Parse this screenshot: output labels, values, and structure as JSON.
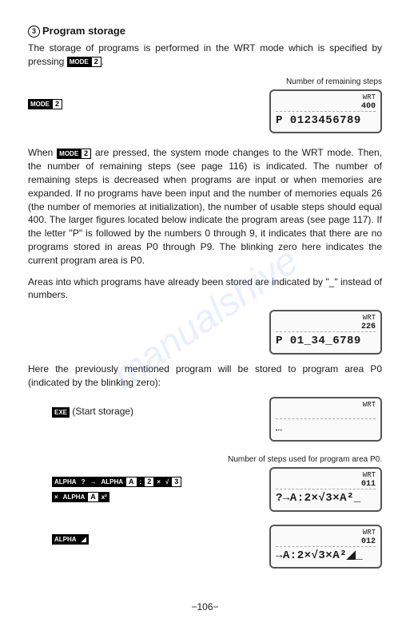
{
  "watermark": "manualshive",
  "heading": {
    "num": "3",
    "title": "Program storage"
  },
  "intro": {
    "text1": "The storage of programs is performed in the WRT mode which is specified by pressing ",
    "key1": "MODE",
    "key2": "2",
    "text2": "."
  },
  "caption1": "Number of remaining steps",
  "lcd1": {
    "top": "WRT",
    "num": "400",
    "main": "P 0123456789"
  },
  "key_left1": {
    "k1": "MODE",
    "k2": "2"
  },
  "para1": {
    "t1": "When ",
    "k1": "MODE",
    "k2": "2",
    "t2": " are pressed, the system mode changes to the WRT mode. Then, the number of remaining steps (see page 116) is indicated. The number of remaining steps is decreased when programs are input or when memories are expanded. If no programs have been input and the number of memories equals 26 (the number of memories at initialization), the number of usable steps should equal 400. The larger figures located below indicate the program areas (see page 117). If the letter \"P\" is followed by the numbers 0 through 9, it indicates that there are no programs stored in areas P0 through P9. The blinking zero here indicates the current program area is P0."
  },
  "para2": "Areas into which programs have already been stored are indicated by \"_\" instead of numbers.",
  "lcd2": {
    "top": "WRT",
    "num": "226",
    "main": "P 01_34_6789"
  },
  "para3": "Here the previously mentioned program will be stored to program area P0 (indicated by the blinking zero):",
  "storage_row": {
    "key": "EXE",
    "label": "(Start storage)"
  },
  "lcd3": {
    "top": "WRT",
    "num": "",
    "main": " "
  },
  "caption2": "Number of steps used for program area P0.",
  "keyseq1": {
    "keys": [
      "ALPHA",
      "?",
      "→",
      "ALPHA",
      "A",
      ":",
      "2",
      "×",
      "√",
      "3"
    ]
  },
  "keyseq2": {
    "keys": [
      "×",
      "ALPHA",
      "A",
      "x²"
    ]
  },
  "lcd4": {
    "top": "WRT",
    "num": "011",
    "main": "?→A:2×√3×A²_"
  },
  "keyseq3": {
    "keys": [
      "ALPHA",
      "◢"
    ]
  },
  "lcd5": {
    "top": "WRT",
    "num": "012",
    "main": "→A:2×√3×A²◢_"
  },
  "page_num": "−106−"
}
